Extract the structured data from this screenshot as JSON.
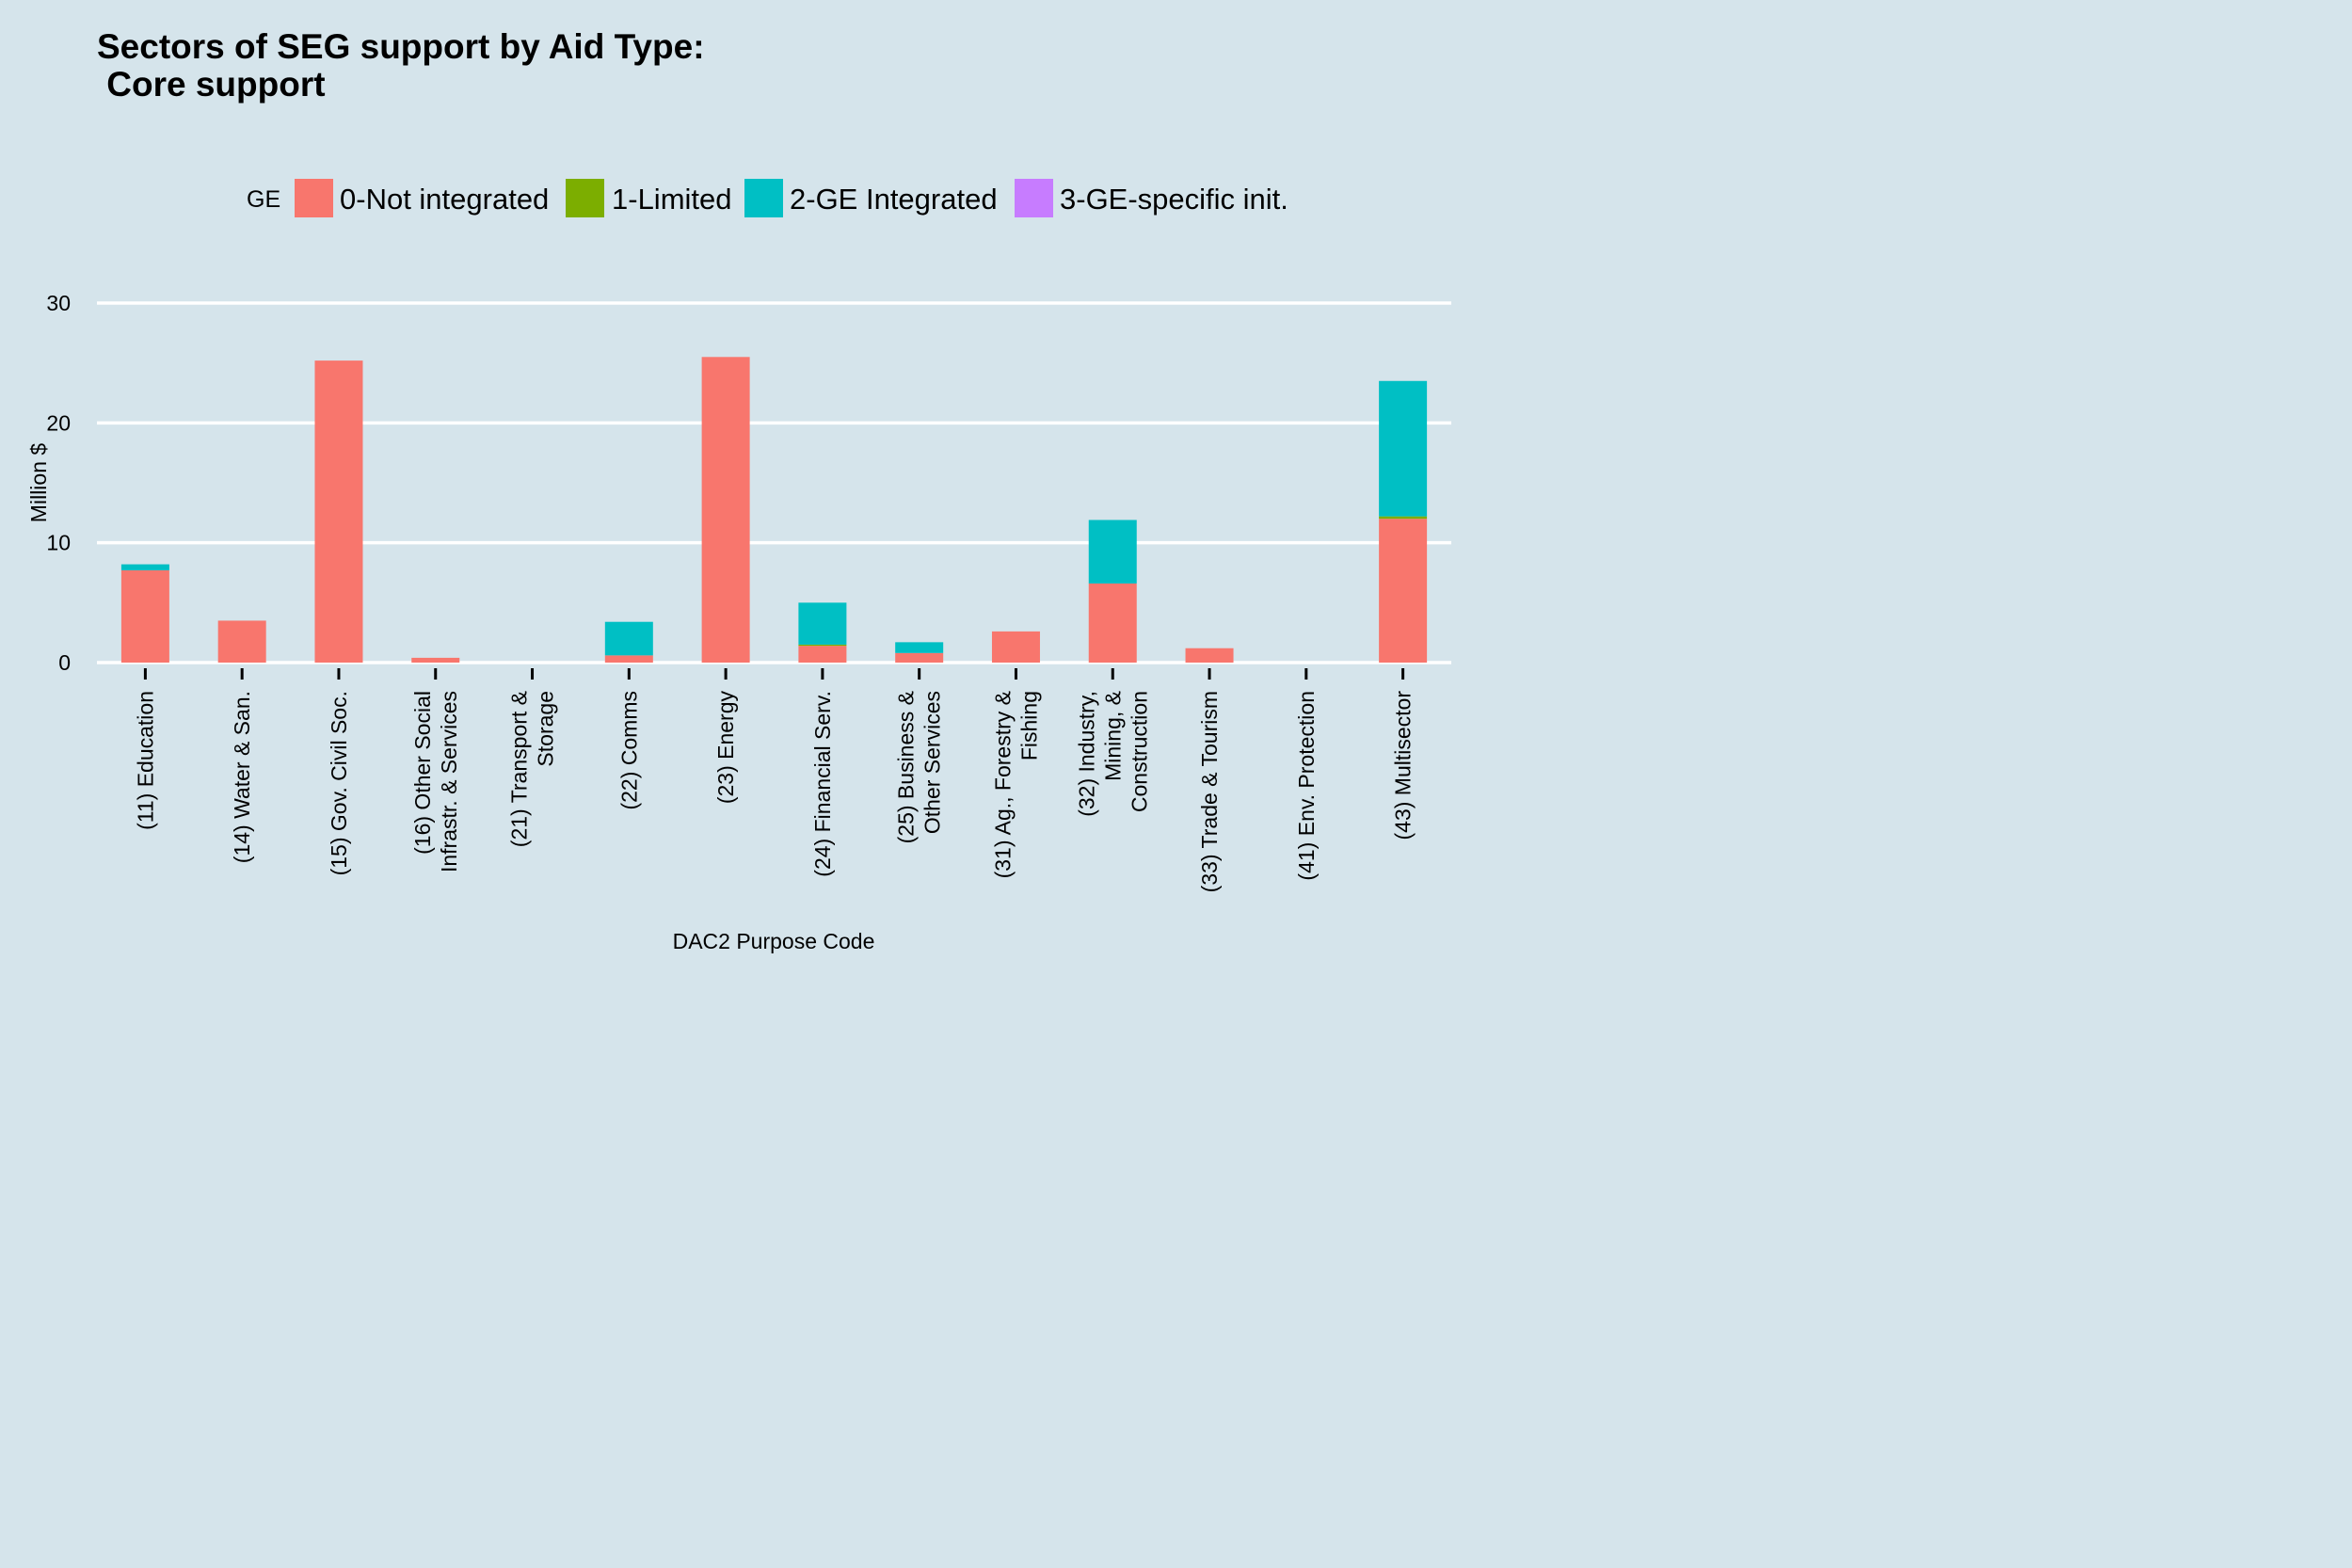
{
  "chart_data": {
    "type": "bar",
    "stacked": true,
    "title_line1": "Sectors of SEG support by Aid Type:",
    "title_line2": " Core support",
    "xlabel": "DAC2 Purpose Code",
    "ylabel": "Million $",
    "ylim": [
      0,
      30
    ],
    "yticks": [
      0,
      10,
      20,
      30
    ],
    "grid": true,
    "legend": {
      "position": "top",
      "title": "GE",
      "entries": [
        "0-Not integrated",
        "1-Limited",
        "2-GE Integrated",
        "3-GE-specific init."
      ]
    },
    "categories": [
      "(11) Education",
      "(14) Water & San.",
      "(15) Gov. Civil Soc.",
      "(16) Other Social Infrastr. & Services",
      "(21) Transport & Storage",
      "(22) Comms",
      "(23) Energy",
      "(24) Financial Serv.",
      "(25) Business & Other Services",
      "(31) Ag., Forestry & Fishing",
      "(32) Industry, Mining, & Construction",
      "(33) Trade & Tourism",
      "(41) Env. Protection",
      "(43) Multisector"
    ],
    "category_label_lines": [
      [
        "(11) Education"
      ],
      [
        "(14) Water & San."
      ],
      [
        "(15) Gov. Civil Soc."
      ],
      [
        "(16) Other Social",
        "Infrastr. & Services"
      ],
      [
        "(21) Transport &",
        "Storage"
      ],
      [
        "(22) Comms"
      ],
      [
        "(23) Energy"
      ],
      [
        "(24) Financial Serv."
      ],
      [
        "(25) Business &",
        "Other Services"
      ],
      [
        "(31) Ag., Forestry &",
        "Fishing"
      ],
      [
        "(32) Industry,",
        "Mining, &",
        "Construction"
      ],
      [
        "(33) Trade & Tourism"
      ],
      [
        "(41) Env. Protection"
      ],
      [
        "(43) Multisector"
      ]
    ],
    "series": [
      {
        "name": "0-Not integrated",
        "color": "#f8766d",
        "values": [
          7.7,
          3.5,
          25.2,
          0.4,
          0,
          0.6,
          25.5,
          1.4,
          0.8,
          2.6,
          6.6,
          1.2,
          0,
          12.0
        ]
      },
      {
        "name": "1-Limited",
        "color": "#7cae00",
        "values": [
          0,
          0,
          0,
          0,
          0,
          0,
          0,
          0.1,
          0,
          0,
          0,
          0,
          0,
          0.2
        ]
      },
      {
        "name": "2-GE Integrated",
        "color": "#00bfc4",
        "values": [
          0.5,
          0,
          0,
          0,
          0,
          2.8,
          0,
          3.5,
          0.9,
          0,
          5.3,
          0,
          0,
          11.3
        ]
      },
      {
        "name": "3-GE-specific init.",
        "color": "#c77cff",
        "values": [
          0,
          0,
          0,
          0,
          0,
          0,
          0,
          0,
          0,
          0,
          0,
          0,
          0,
          0
        ]
      }
    ]
  }
}
